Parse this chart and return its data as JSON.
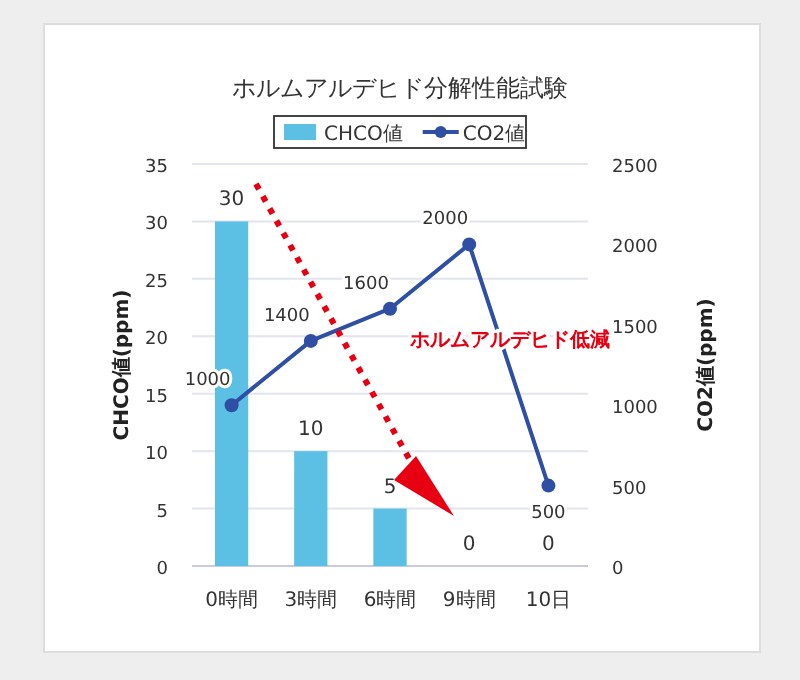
{
  "chart_data": {
    "type": "bar",
    "title": "ホルムアルデヒド分解性能試験",
    "categories": [
      "0時間",
      "3時間",
      "6時間",
      "9時間",
      "10日"
    ],
    "series": [
      {
        "name": "CHCO値",
        "color": "#5bc0e4",
        "values": [
          30,
          10,
          5,
          0,
          0
        ]
      },
      {
        "name": "CO2値",
        "type": "line",
        "axis": "y2",
        "color": "#2e4fa3",
        "values": [
          1000,
          1400,
          1600,
          2000,
          500
        ]
      }
    ],
    "ylabel": "CHCO値(ppm)",
    "y2label": "CO2値(ppm)",
    "ylim": [
      0,
      35
    ],
    "yticks": [
      0,
      5,
      10,
      15,
      20,
      25,
      30,
      35
    ],
    "y2lim": [
      0,
      2500
    ],
    "y2ticks": [
      0,
      500,
      1000,
      1500,
      2000,
      2500
    ],
    "grid": "y",
    "legend": "top",
    "marker": "circle",
    "data_labels": true,
    "annotations": [
      "ホルムアルデヒド低減"
    ]
  }
}
